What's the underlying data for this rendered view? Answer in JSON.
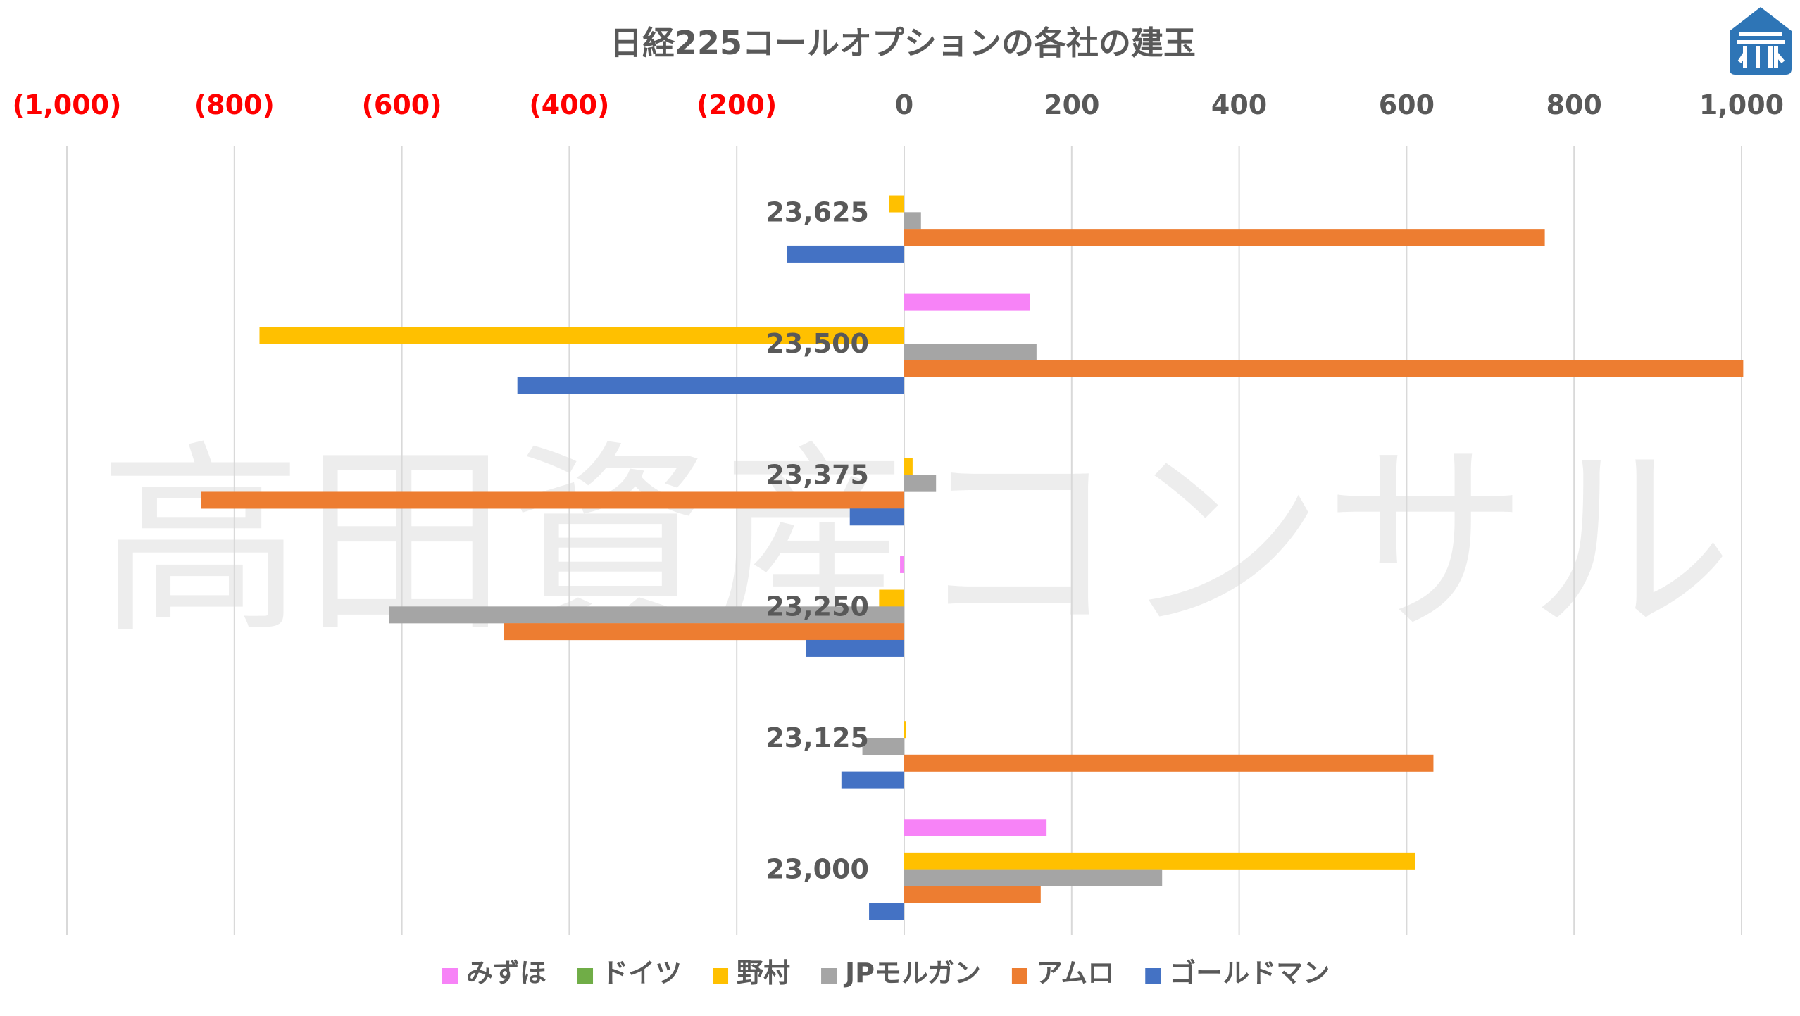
{
  "chart_data": {
    "type": "bar",
    "orientation": "horizontal",
    "title": "日経225コールオプションの各社の建玉",
    "watermark": "高田資産コンサル",
    "x_tick_labels": [
      "(1,000)",
      "(800)",
      "(600)",
      "(400)",
      "(200)",
      "0",
      "200",
      "400",
      "600",
      "800",
      "1,000"
    ],
    "x_ticks": [
      -1000,
      -800,
      -600,
      -400,
      -200,
      0,
      200,
      400,
      600,
      800,
      1000
    ],
    "xlim": [
      -1000,
      1000
    ],
    "grid": true,
    "legend_position": "bottom",
    "categories": [
      "23,625",
      "23,500",
      "23,375",
      "23,250",
      "23,125",
      "23,000"
    ],
    "series": [
      {
        "name": "みずほ",
        "color": "#F783F7",
        "values": [
          0,
          150,
          0,
          -5,
          0,
          170
        ]
      },
      {
        "name": "ドイツ",
        "color": "#70AD47",
        "values": [
          0,
          0,
          0,
          0,
          0,
          0
        ]
      },
      {
        "name": "野村",
        "color": "#FFC000",
        "values": [
          -18,
          -770,
          10,
          -30,
          2,
          610
        ]
      },
      {
        "name": "JPモルガン",
        "color": "#A5A5A5",
        "values": [
          20,
          158,
          38,
          -615,
          -50,
          308
        ]
      },
      {
        "name": "アムロ",
        "color": "#ED7D31",
        "values": [
          765,
          1002,
          -840,
          -478,
          632,
          163
        ]
      },
      {
        "name": "ゴールドマン",
        "color": "#4472C4",
        "values": [
          -140,
          -462,
          -65,
          -117,
          -75,
          -42
        ]
      }
    ],
    "colors": {
      "negative_tick": "#FF0000",
      "tick": "#595959",
      "grid": "#D9D9D9",
      "logo": "#2E75B6"
    }
  },
  "logo": {
    "icon": "building-icon"
  }
}
